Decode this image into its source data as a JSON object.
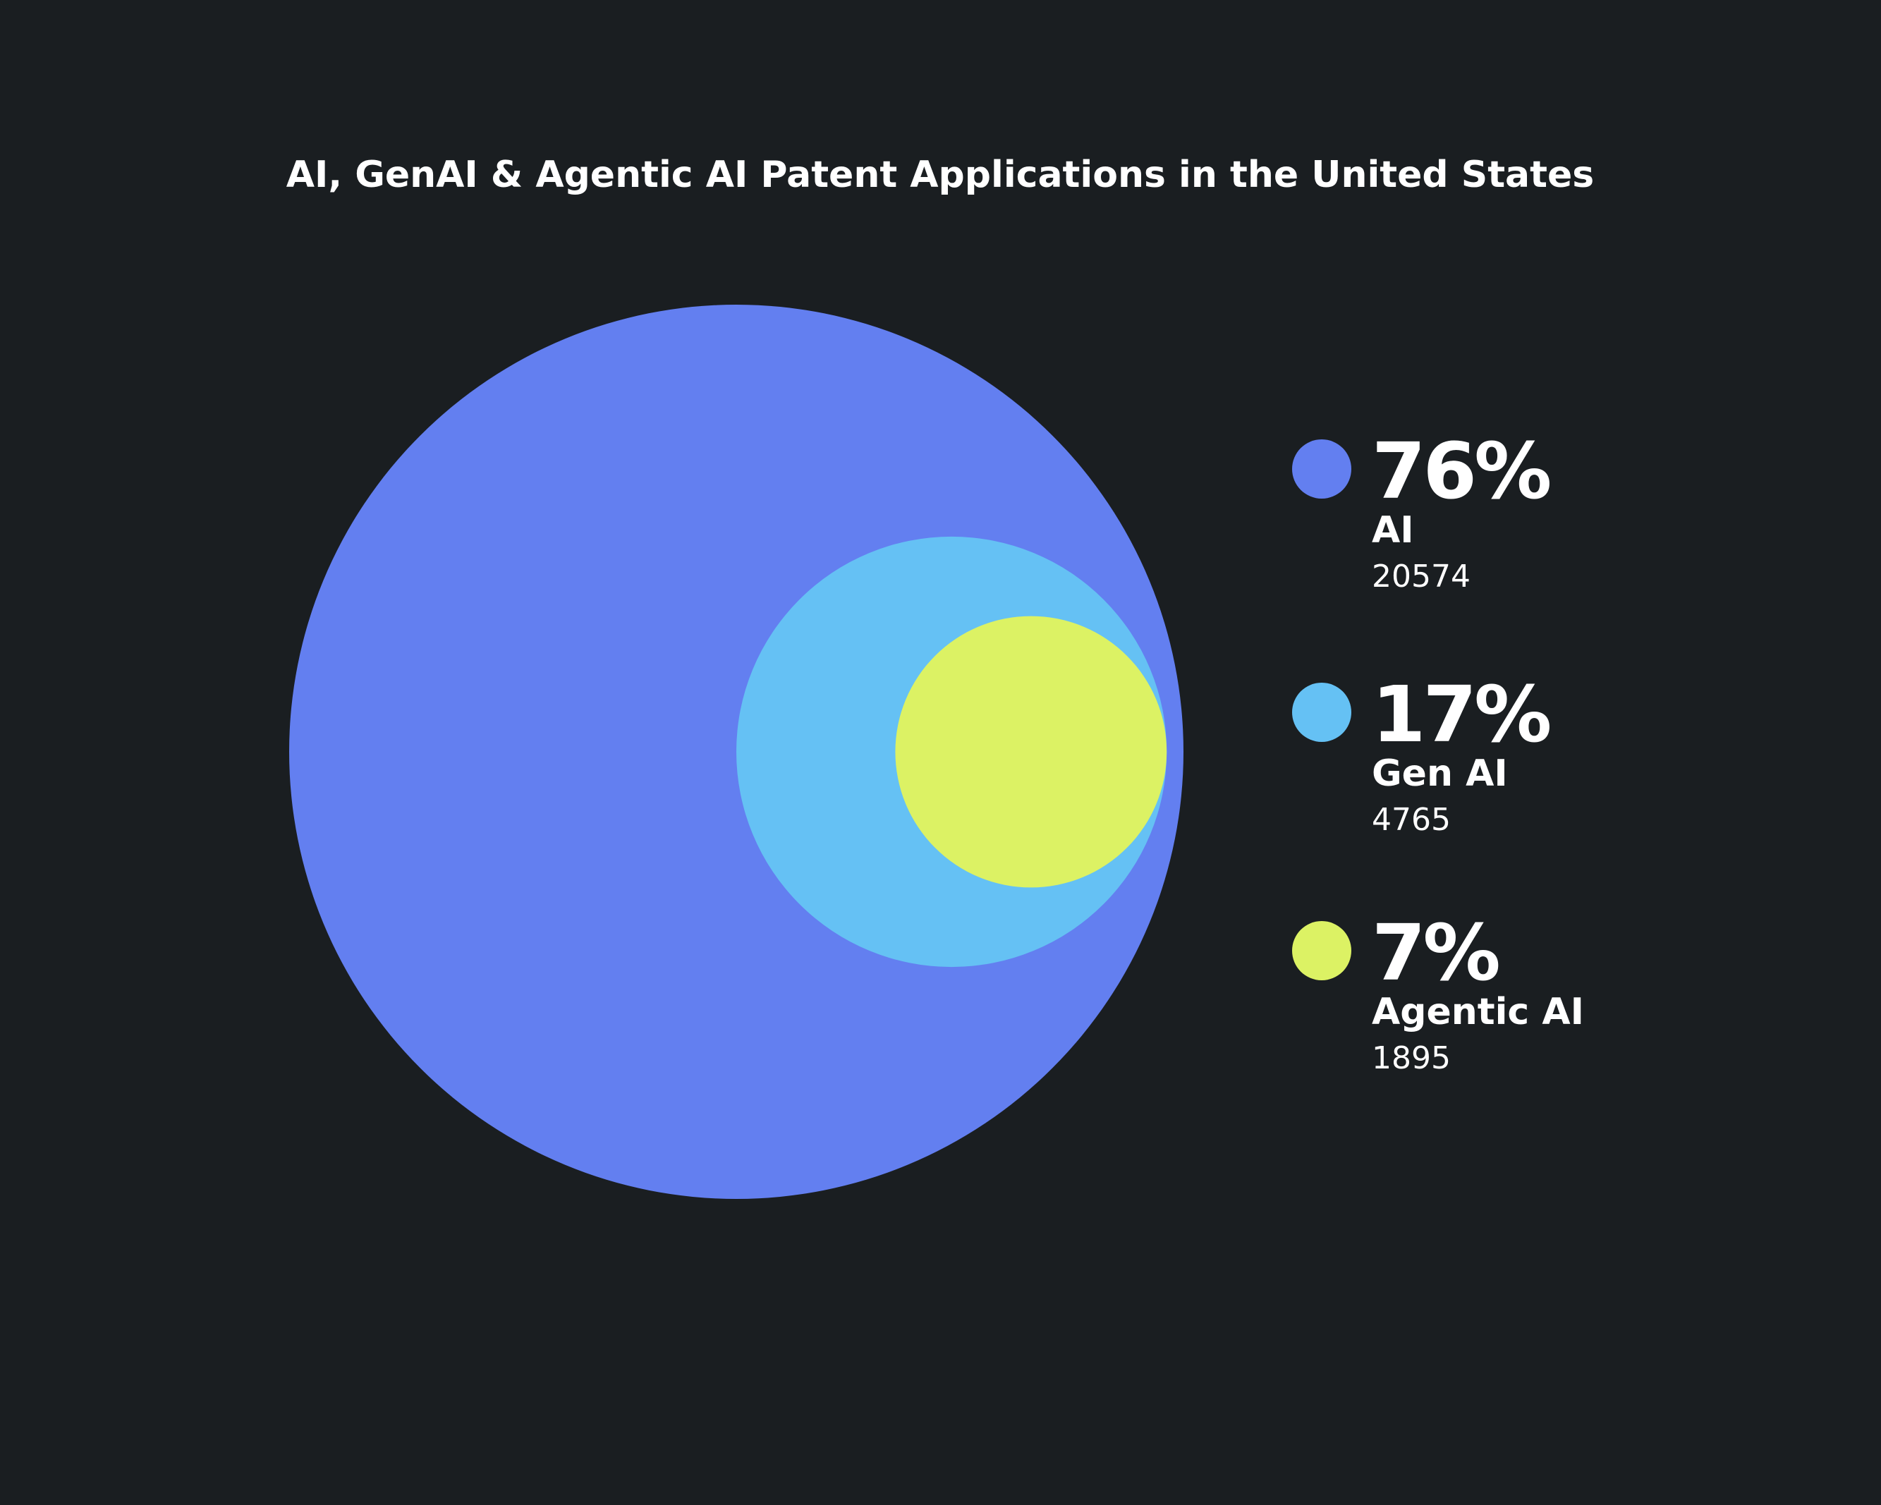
{
  "chart_data": {
    "type": "nested-bubble",
    "title": "AI, GenAI & Agentic AI Patent Applications in the United States",
    "categories": [
      "AI",
      "Gen AI",
      "Agentic AI"
    ],
    "values": [
      20574,
      4765,
      1895
    ],
    "percentages": [
      "76%",
      "17%",
      "7%"
    ],
    "colors": [
      "#637ff0",
      "#65c1f4",
      "#dcf264"
    ],
    "legend_position": "right"
  },
  "background": "#1a1e21"
}
